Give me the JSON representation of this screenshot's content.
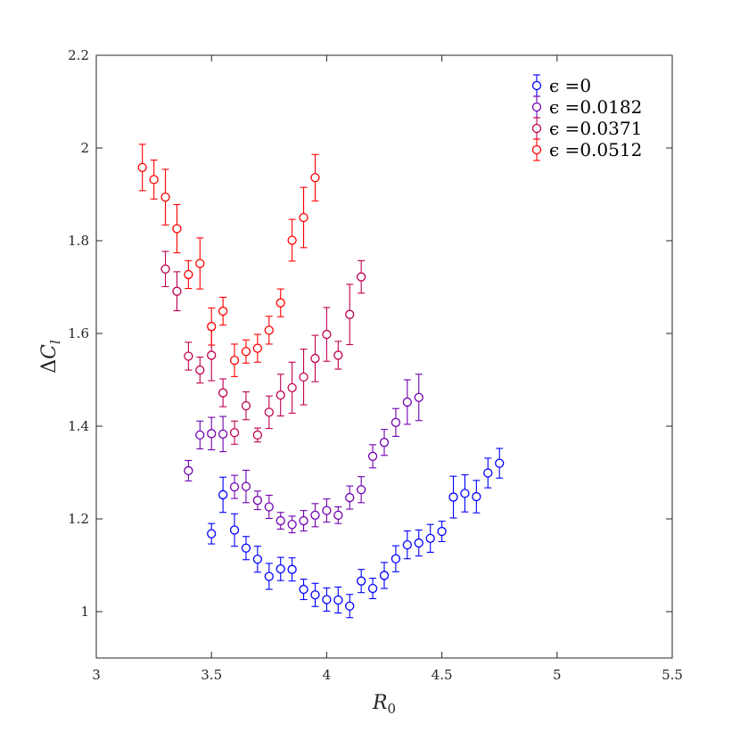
{
  "chart_data": {
    "type": "scatter",
    "title": "",
    "xlabel": "R_0",
    "ylabel": "ΔC_l",
    "xlim": [
      3,
      5.5
    ],
    "ylim": [
      0.9,
      2.2
    ],
    "xticks": [
      "3",
      "3.5",
      "4",
      "4.5",
      "5",
      "5.5"
    ],
    "yticks": [
      "1",
      "1.2",
      "1.4",
      "1.6",
      "1.8",
      "2",
      "2.2"
    ],
    "grid": false,
    "legend_position": "top-right",
    "marker": "open-circle-with-error-bars",
    "series": [
      {
        "name": "ϵ =0",
        "color": "#0000ff",
        "x": [
          3.5,
          3.55,
          3.6,
          3.65,
          3.7,
          3.75,
          3.8,
          3.85,
          3.9,
          3.95,
          4.0,
          4.05,
          4.1,
          4.15,
          4.2,
          4.25,
          4.3,
          4.35,
          4.4,
          4.45,
          4.5,
          4.55,
          4.6,
          4.65,
          4.7,
          4.75
        ],
        "y": [
          1.168,
          1.252,
          1.176,
          1.137,
          1.113,
          1.076,
          1.092,
          1.091,
          1.048,
          1.036,
          1.026,
          1.025,
          1.012,
          1.066,
          1.05,
          1.078,
          1.114,
          1.144,
          1.148,
          1.158,
          1.173,
          1.247,
          1.255,
          1.248,
          1.299,
          1.32
        ],
        "err": [
          0.022,
          0.038,
          0.035,
          0.025,
          0.028,
          0.028,
          0.025,
          0.025,
          0.022,
          0.025,
          0.025,
          0.028,
          0.025,
          0.025,
          0.022,
          0.028,
          0.028,
          0.03,
          0.028,
          0.03,
          0.022,
          0.045,
          0.04,
          0.035,
          0.032,
          0.032
        ]
      },
      {
        "name": "ϵ =0.0182",
        "color": "#7000b0",
        "x": [
          3.4,
          3.45,
          3.5,
          3.55,
          3.6,
          3.65,
          3.7,
          3.75,
          3.8,
          3.85,
          3.9,
          3.95,
          4.0,
          4.05,
          4.1,
          4.15,
          4.2,
          4.25,
          4.3,
          4.35,
          4.4
        ],
        "y": [
          1.304,
          1.381,
          1.384,
          1.383,
          1.269,
          1.27,
          1.24,
          1.226,
          1.196,
          1.188,
          1.196,
          1.208,
          1.218,
          1.208,
          1.246,
          1.263,
          1.335,
          1.365,
          1.408,
          1.452,
          1.462
        ],
        "err": [
          0.022,
          0.03,
          0.035,
          0.038,
          0.025,
          0.035,
          0.02,
          0.025,
          0.018,
          0.018,
          0.022,
          0.025,
          0.025,
          0.018,
          0.025,
          0.028,
          0.025,
          0.028,
          0.03,
          0.048,
          0.05
        ]
      },
      {
        "name": "ϵ =0.0371",
        "color": "#c00050",
        "x": [
          3.3,
          3.35,
          3.4,
          3.45,
          3.5,
          3.55,
          3.6,
          3.65,
          3.7,
          3.75,
          3.8,
          3.85,
          3.9,
          3.95,
          4.0,
          4.05,
          4.1,
          4.15
        ],
        "y": [
          1.739,
          1.691,
          1.551,
          1.521,
          1.553,
          1.472,
          1.386,
          1.444,
          1.381,
          1.43,
          1.467,
          1.483,
          1.506,
          1.546,
          1.598,
          1.553,
          1.641,
          1.722
        ],
        "err": [
          0.038,
          0.042,
          0.03,
          0.028,
          0.055,
          0.03,
          0.025,
          0.03,
          0.015,
          0.035,
          0.045,
          0.055,
          0.06,
          0.05,
          0.058,
          0.03,
          0.065,
          0.035
        ]
      },
      {
        "name": "ϵ =0.0512",
        "color": "#ff0000",
        "x": [
          3.2,
          3.25,
          3.3,
          3.35,
          3.4,
          3.45,
          3.5,
          3.55,
          3.6,
          3.65,
          3.7,
          3.75,
          3.8,
          3.85,
          3.9,
          3.95
        ],
        "y": [
          1.958,
          1.932,
          1.894,
          1.826,
          1.727,
          1.751,
          1.615,
          1.648,
          1.542,
          1.561,
          1.568,
          1.607,
          1.666,
          1.801,
          1.85,
          1.936
        ],
        "err": [
          0.05,
          0.042,
          0.06,
          0.052,
          0.03,
          0.055,
          0.04,
          0.03,
          0.035,
          0.025,
          0.03,
          0.03,
          0.03,
          0.045,
          0.065,
          0.05
        ]
      }
    ]
  }
}
